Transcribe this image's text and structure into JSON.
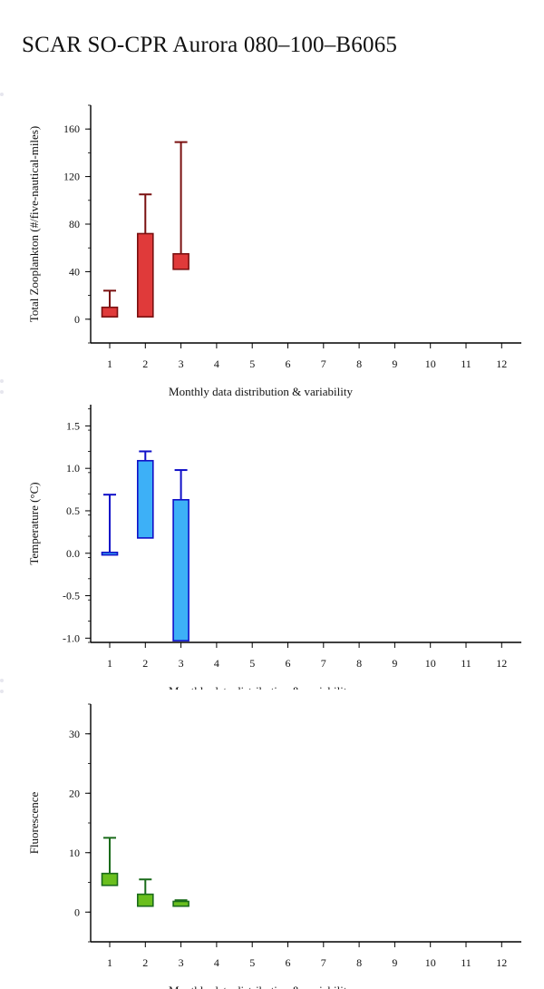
{
  "page": {
    "title": "SCAR SO-CPR Aurora 080–100–B6065"
  },
  "chart_data": [
    {
      "type": "box",
      "ylabel": "Total Zooplankton (#/five-nautical-miles)",
      "xlabel": "Monthly data distribution & variability",
      "x_ticks": [
        "1",
        "2",
        "3",
        "4",
        "5",
        "6",
        "7",
        "8",
        "9",
        "10",
        "11",
        "12"
      ],
      "y_ticks": [
        "0",
        "40",
        "80",
        "120",
        "160"
      ],
      "ylim": [
        -20,
        180
      ],
      "color_fill": "#e03a3a",
      "color_stroke": "#7a1010",
      "boxes": [
        {
          "month": 1,
          "whisker_low": 2,
          "q1": 2,
          "q3": 10,
          "whisker_high": 24
        },
        {
          "month": 2,
          "whisker_low": 2,
          "q1": 2,
          "q3": 72,
          "whisker_high": 105
        },
        {
          "month": 3,
          "whisker_low": 42,
          "q1": 42,
          "q3": 55,
          "whisker_high": 149
        }
      ]
    },
    {
      "type": "box",
      "ylabel": "Temperature (°C)",
      "xlabel": "Monthly data distribution & variability",
      "x_ticks": [
        "1",
        "2",
        "3",
        "4",
        "5",
        "6",
        "7",
        "8",
        "9",
        "10",
        "11",
        "12"
      ],
      "y_ticks": [
        "-1.0",
        "-0.5",
        "0.0",
        "0.5",
        "1.0",
        "1.5"
      ],
      "ylim": [
        -1.05,
        1.75
      ],
      "color_fill": "#3db0f7",
      "color_stroke": "#1010c8",
      "boxes": [
        {
          "month": 1,
          "whisker_low": -0.02,
          "q1": -0.02,
          "q3": 0.01,
          "whisker_high": 0.69
        },
        {
          "month": 2,
          "whisker_low": 0.18,
          "q1": 0.18,
          "q3": 1.09,
          "whisker_high": 1.2
        },
        {
          "month": 3,
          "whisker_low": -1.03,
          "q1": -1.03,
          "q3": 0.63,
          "whisker_high": 0.98
        }
      ]
    },
    {
      "type": "box",
      "ylabel": "Fluorescence",
      "xlabel": "Monthly data distribution & variability",
      "x_ticks": [
        "1",
        "2",
        "3",
        "4",
        "5",
        "6",
        "7",
        "8",
        "9",
        "10",
        "11",
        "12"
      ],
      "y_ticks": [
        "0",
        "10",
        "20",
        "30"
      ],
      "ylim": [
        -5,
        35
      ],
      "color_fill": "#6abf1e",
      "color_stroke": "#1a6b1a",
      "boxes": [
        {
          "month": 1,
          "whisker_low": 4.5,
          "q1": 4.5,
          "q3": 6.5,
          "whisker_high": 12.5
        },
        {
          "month": 2,
          "whisker_low": 1,
          "q1": 1,
          "q3": 3,
          "whisker_high": 5.5
        },
        {
          "month": 3,
          "whisker_low": 1,
          "q1": 1,
          "q3": 1.8,
          "whisker_high": 2
        }
      ]
    }
  ]
}
